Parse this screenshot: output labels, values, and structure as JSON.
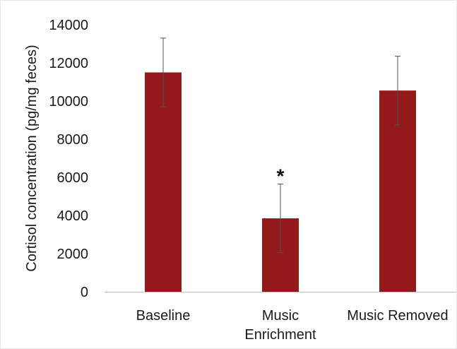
{
  "chart_data": {
    "type": "bar",
    "title": "",
    "xlabel": "",
    "ylabel": "Cortisol concentration (pg/mg feces)",
    "categories": [
      "Baseline",
      "Music Enrichment",
      "Music Removed"
    ],
    "category_lines": [
      [
        "Baseline"
      ],
      [
        "Music",
        "Enrichment"
      ],
      [
        "Music Removed"
      ]
    ],
    "values": [
      11500,
      3850,
      10550
    ],
    "error": [
      1800,
      1800,
      1800
    ],
    "annotations": [
      "",
      "*",
      ""
    ],
    "ylim": [
      0,
      14000
    ],
    "yticks": [
      0,
      2000,
      4000,
      6000,
      8000,
      10000,
      12000,
      14000
    ],
    "grid": false,
    "legend": "none",
    "bar_color": "#93191b",
    "error_bar_color": "#555555",
    "axis_color": "#bfbfbf"
  }
}
